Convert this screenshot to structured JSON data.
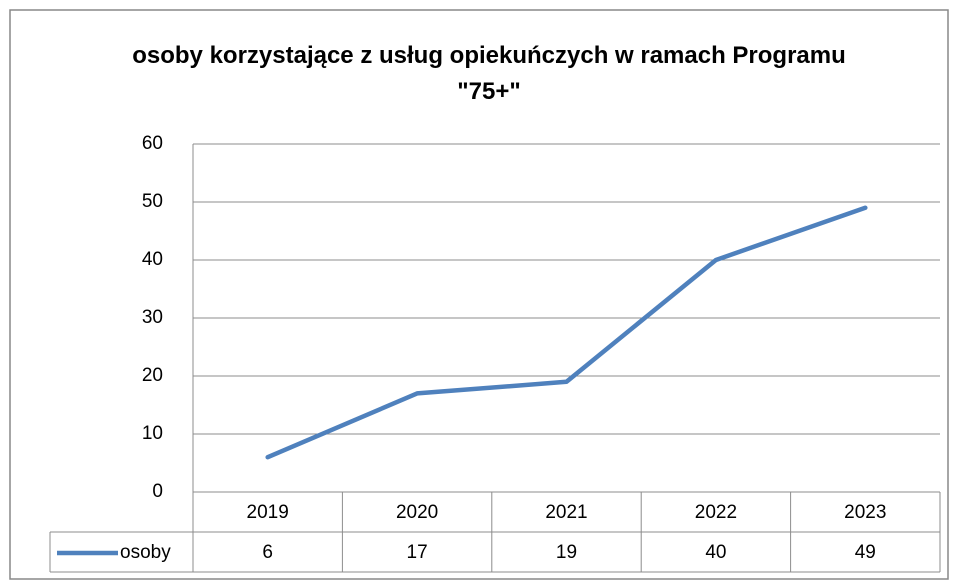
{
  "chart_data": {
    "type": "line",
    "title": "osoby korzystające z usług opiekuńczych w ramach Programu \"75+\"",
    "categories": [
      "2019",
      "2020",
      "2021",
      "2022",
      "2023"
    ],
    "series": [
      {
        "name": "osoby",
        "color": "#4f81bd",
        "values": [
          6,
          17,
          19,
          40,
          49
        ]
      }
    ],
    "ylim": [
      0,
      60
    ],
    "yticks": [
      0,
      10,
      20,
      30,
      40,
      50,
      60
    ],
    "grid": true,
    "data_table": true
  }
}
